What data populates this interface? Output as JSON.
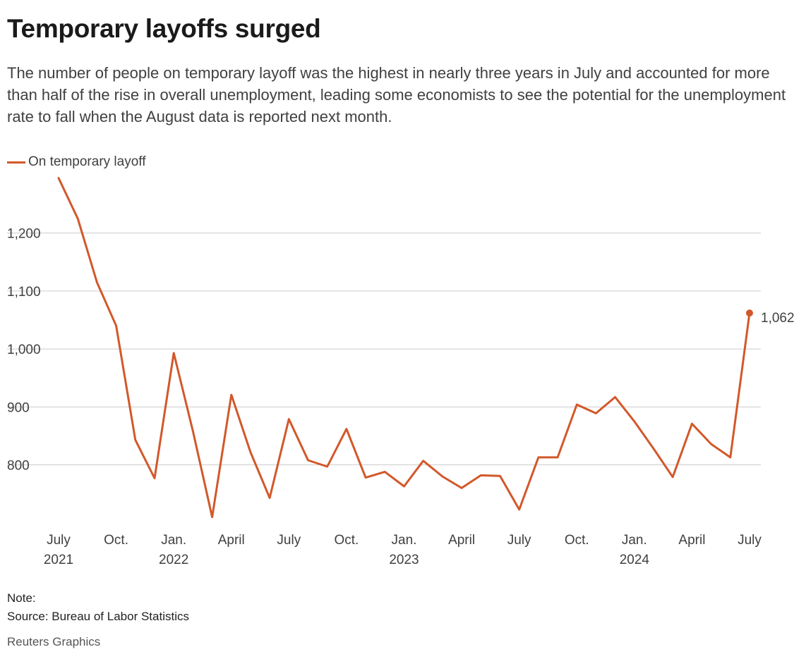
{
  "title": "Temporary layoffs surged",
  "subtitle": "The number of people on temporary layoff was the highest in nearly three years in July and accounted for more than half of the rise in overall unemployment, leading some economists to see the potential for the unemployment rate to fall when the August data is reported next month.",
  "legend": {
    "label": "On temporary layoff"
  },
  "note": "Note:",
  "source": "Source: Bureau of Labor Statistics",
  "credit": "Reuters Graphics",
  "colors": {
    "line": "#d2582a",
    "grid": "#cccccc",
    "text": "#404040"
  },
  "chart_data": {
    "type": "line",
    "series": [
      {
        "name": "On temporary layoff",
        "values": [
          1295,
          1225,
          1115,
          1040,
          843,
          777,
          993,
          858,
          710,
          921,
          822,
          743,
          879,
          808,
          797,
          862,
          778,
          788,
          763,
          807,
          780,
          760,
          782,
          781,
          723,
          813,
          813,
          904,
          889,
          917,
          875,
          828,
          779,
          871,
          836,
          813,
          1062
        ]
      }
    ],
    "x_start": "2021-07",
    "x_end": "2024-07",
    "x_ticks": [
      {
        "index": 0,
        "label": "July",
        "year": "2021"
      },
      {
        "index": 3,
        "label": "Oct.",
        "year": ""
      },
      {
        "index": 6,
        "label": "Jan.",
        "year": "2022"
      },
      {
        "index": 9,
        "label": "April",
        "year": ""
      },
      {
        "index": 12,
        "label": "July",
        "year": ""
      },
      {
        "index": 15,
        "label": "Oct.",
        "year": ""
      },
      {
        "index": 18,
        "label": "Jan.",
        "year": "2023"
      },
      {
        "index": 21,
        "label": "April",
        "year": ""
      },
      {
        "index": 24,
        "label": "July",
        "year": ""
      },
      {
        "index": 27,
        "label": "Oct.",
        "year": ""
      },
      {
        "index": 30,
        "label": "Jan.",
        "year": "2024"
      },
      {
        "index": 33,
        "label": "April",
        "year": ""
      },
      {
        "index": 36,
        "label": "July",
        "year": ""
      }
    ],
    "y_ticks": [
      {
        "value": 800,
        "label": "800"
      },
      {
        "value": 900,
        "label": "900"
      },
      {
        "value": 1000,
        "label": "1,000"
      },
      {
        "value": 1100,
        "label": "1,100"
      },
      {
        "value": 1200,
        "label": "1,200"
      }
    ],
    "ylim": [
      690,
      1320
    ],
    "grid": true,
    "legend_position": "top-left",
    "annotation": {
      "index": 36,
      "value": 1062,
      "label": "1,062"
    }
  }
}
